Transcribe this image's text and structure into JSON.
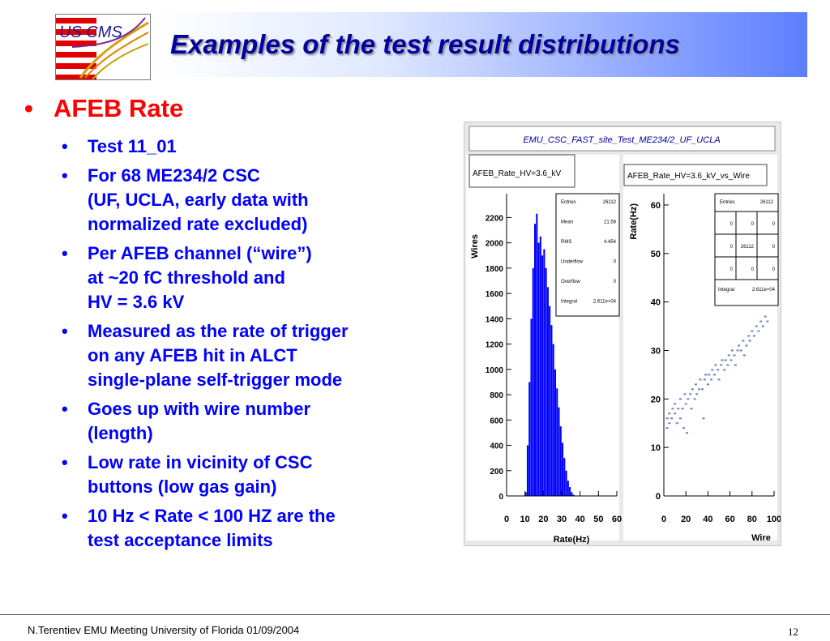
{
  "slide": {
    "title": "Examples of the test result distributions",
    "logo_text": "US CMS",
    "main_bullet": "AFEB Rate",
    "sub_bullets": [
      [
        "Test 11_01"
      ],
      [
        "For 68  ME234/2 CSC",
        "(UF, UCLA, early data with",
        "normalized rate excluded)"
      ],
      [
        "Per AFEB channel (“wire”)",
        "at ~20 fC threshold and",
        "HV = 3.6 kV"
      ],
      [
        "Measured as the rate of trigger",
        "on any AFEB hit in ALCT",
        "single-plane self-trigger mode"
      ],
      [
        "Goes up with wire number",
        "(length)"
      ],
      [
        "Low rate in vicinity of CSC",
        "buttons (low gas gain)"
      ],
      [
        "10 Hz < Rate < 100 HZ are the",
        "test acceptance limits"
      ]
    ],
    "footer": "N.Terentiev EMU Meeting  University of Florida   01/09/2004",
    "page_number": "12",
    "colors": {
      "title": "#0000a0",
      "bullet_main": "#ff0000",
      "bullet_sub": "#0000ff",
      "histogram": "#0000ff"
    }
  },
  "canvas": {
    "header": "EMU_CSC_FAST_site_Test_ME234/2_UF_UCLA"
  },
  "chart_data": [
    {
      "type": "bar",
      "title": "AFEB_Rate_HV=3.6_kV",
      "xlabel": "Rate(Hz)",
      "ylabel": "Wires",
      "xlim": [
        0,
        60
      ],
      "ylim": [
        0,
        2350
      ],
      "xticks": [
        "0",
        "10",
        "20",
        "30",
        "40",
        "50",
        "60"
      ],
      "yticks": [
        "0",
        "200",
        "400",
        "600",
        "800",
        "1000",
        "1200",
        "1400",
        "1600",
        "1800",
        "2000",
        "2200"
      ],
      "bin_width": 1,
      "bins": [
        {
          "x": 10,
          "y": 30
        },
        {
          "x": 11,
          "y": 400
        },
        {
          "x": 12,
          "y": 900
        },
        {
          "x": 13,
          "y": 1400
        },
        {
          "x": 14,
          "y": 1800
        },
        {
          "x": 15,
          "y": 2150
        },
        {
          "x": 16,
          "y": 2230
        },
        {
          "x": 17,
          "y": 2000
        },
        {
          "x": 18,
          "y": 2050
        },
        {
          "x": 19,
          "y": 1900
        },
        {
          "x": 20,
          "y": 1950
        },
        {
          "x": 21,
          "y": 1800
        },
        {
          "x": 22,
          "y": 1650
        },
        {
          "x": 23,
          "y": 1500
        },
        {
          "x": 24,
          "y": 1350
        },
        {
          "x": 25,
          "y": 1200
        },
        {
          "x": 26,
          "y": 1000
        },
        {
          "x": 27,
          "y": 850
        },
        {
          "x": 28,
          "y": 700
        },
        {
          "x": 29,
          "y": 550
        },
        {
          "x": 30,
          "y": 420
        },
        {
          "x": 31,
          "y": 300
        },
        {
          "x": 32,
          "y": 200
        },
        {
          "x": 33,
          "y": 120
        },
        {
          "x": 34,
          "y": 70
        },
        {
          "x": 35,
          "y": 30
        },
        {
          "x": 36,
          "y": 10
        }
      ],
      "stats": [
        {
          "label": "Entries",
          "value": "26112"
        },
        {
          "label": "Mean",
          "value": "21.58"
        },
        {
          "label": "RMS",
          "value": "4.454"
        },
        {
          "label": "Underflow",
          "value": "0"
        },
        {
          "label": "Overflow",
          "value": "0"
        },
        {
          "label": "Integral",
          "value": "2.611e+04"
        }
      ]
    },
    {
      "type": "scatter",
      "title": "AFEB_Rate_HV=3.6_kV_vs_Wire",
      "xlabel": "Wire",
      "ylabel": "Rate(Hz)",
      "xlim": [
        0,
        100
      ],
      "ylim": [
        0,
        62
      ],
      "xticks": [
        "0",
        "20",
        "40",
        "60",
        "80",
        "100"
      ],
      "yticks": [
        "0",
        "10",
        "20",
        "30",
        "40",
        "50",
        "60"
      ],
      "points": [
        {
          "x": 3,
          "y": 14
        },
        {
          "x": 3,
          "y": 16
        },
        {
          "x": 5,
          "y": 15
        },
        {
          "x": 5,
          "y": 17
        },
        {
          "x": 7,
          "y": 16
        },
        {
          "x": 8,
          "y": 18
        },
        {
          "x": 10,
          "y": 17
        },
        {
          "x": 10,
          "y": 19
        },
        {
          "x": 12,
          "y": 15
        },
        {
          "x": 13,
          "y": 18
        },
        {
          "x": 15,
          "y": 16
        },
        {
          "x": 15,
          "y": 20
        },
        {
          "x": 17,
          "y": 18
        },
        {
          "x": 18,
          "y": 14
        },
        {
          "x": 19,
          "y": 21
        },
        {
          "x": 20,
          "y": 19
        },
        {
          "x": 21,
          "y": 13
        },
        {
          "x": 22,
          "y": 20
        },
        {
          "x": 24,
          "y": 21
        },
        {
          "x": 25,
          "y": 18
        },
        {
          "x": 26,
          "y": 22
        },
        {
          "x": 28,
          "y": 20
        },
        {
          "x": 29,
          "y": 23
        },
        {
          "x": 30,
          "y": 21
        },
        {
          "x": 32,
          "y": 22
        },
        {
          "x": 33,
          "y": 24
        },
        {
          "x": 35,
          "y": 22
        },
        {
          "x": 36,
          "y": 16
        },
        {
          "x": 37,
          "y": 24
        },
        {
          "x": 38,
          "y": 25
        },
        {
          "x": 40,
          "y": 23
        },
        {
          "x": 41,
          "y": 25
        },
        {
          "x": 43,
          "y": 24
        },
        {
          "x": 44,
          "y": 26
        },
        {
          "x": 46,
          "y": 25
        },
        {
          "x": 47,
          "y": 27
        },
        {
          "x": 49,
          "y": 26
        },
        {
          "x": 50,
          "y": 24
        },
        {
          "x": 52,
          "y": 27
        },
        {
          "x": 53,
          "y": 28
        },
        {
          "x": 55,
          "y": 26
        },
        {
          "x": 56,
          "y": 28
        },
        {
          "x": 58,
          "y": 27
        },
        {
          "x": 59,
          "y": 29
        },
        {
          "x": 61,
          "y": 28
        },
        {
          "x": 62,
          "y": 30
        },
        {
          "x": 64,
          "y": 29
        },
        {
          "x": 65,
          "y": 27
        },
        {
          "x": 67,
          "y": 30
        },
        {
          "x": 68,
          "y": 31
        },
        {
          "x": 70,
          "y": 30
        },
        {
          "x": 72,
          "y": 32
        },
        {
          "x": 73,
          "y": 29
        },
        {
          "x": 75,
          "y": 31
        },
        {
          "x": 77,
          "y": 33
        },
        {
          "x": 78,
          "y": 32
        },
        {
          "x": 80,
          "y": 34
        },
        {
          "x": 82,
          "y": 33
        },
        {
          "x": 84,
          "y": 35
        },
        {
          "x": 86,
          "y": 34
        },
        {
          "x": 88,
          "y": 36
        },
        {
          "x": 90,
          "y": 35
        },
        {
          "x": 92,
          "y": 37
        },
        {
          "x": 94,
          "y": 36
        }
      ],
      "stats": {
        "entries_label": "Entries",
        "entries_value": "26112",
        "grid": [
          [
            "0",
            "0",
            "0"
          ],
          [
            "0",
            "26112",
            "0"
          ],
          [
            "0",
            "0",
            "0"
          ]
        ],
        "integral_label": "Integral",
        "integral_value": "2.611e+04"
      }
    }
  ]
}
